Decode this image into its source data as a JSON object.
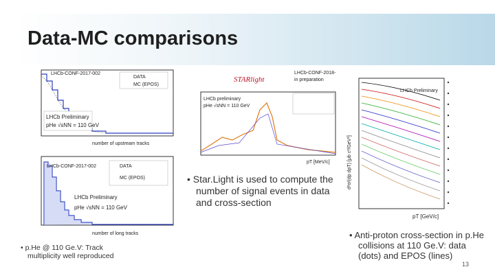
{
  "slide": {
    "title": "Data-MC comparisons",
    "page_number": "13",
    "plots": [
      {
        "labels": [
          "LHCb-CONF-2017-002",
          "DATA",
          "MC (EPOS)",
          "LHCb Preliminary",
          "pHe √sNN = 110 GeV",
          "number of upstream tracks"
        ]
      },
      {
        "labels": [
          "LHCb-CONF-2017-002",
          "DATA",
          "MC (EPOS)",
          "LHCb Preliminary",
          "pHe √sNN = 110 GeV",
          "number of long tracks"
        ]
      },
      {
        "labels": [
          "STARlight",
          "LHCb-CONF-2018-",
          "in preparation",
          "LHCb preliminary",
          "pHe √sNN = 110 GeV",
          "pT [MeV/c]"
        ]
      },
      {
        "labels": [
          "LHCb Preliminary",
          "d²σ/(dp dpT) [μb c²/GeV²]",
          "pT [GeV/c]"
        ]
      }
    ],
    "bullets": [
      {
        "lines": [
          "p.He @ 110 Ge.V: Track",
          "multiplicity well reproduced"
        ]
      },
      {
        "lines": [
          "Star.Light is used to compute the",
          "number of signal events in data",
          "and cross-section"
        ]
      },
      {
        "lines": [
          "Anti-proton cross-section in p.He",
          "collisions at 110 Ge.V: data",
          "(dots) and EPOS (lines)"
        ]
      }
    ]
  }
}
